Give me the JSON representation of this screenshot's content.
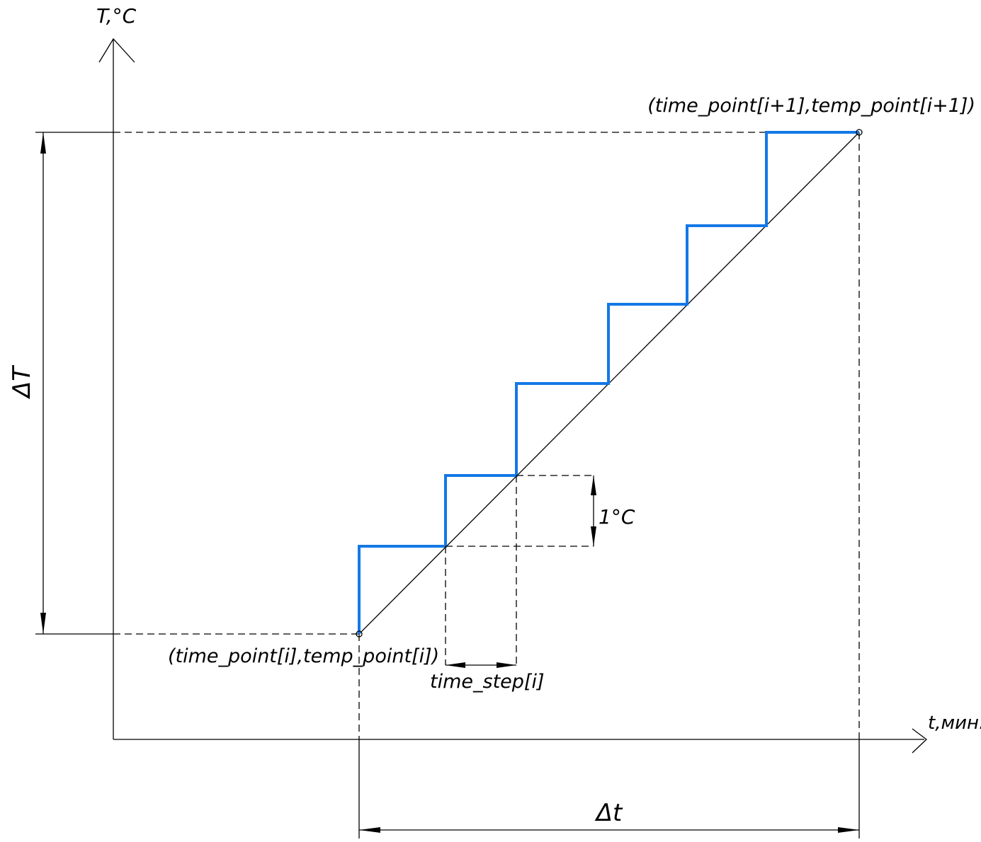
{
  "diagram": {
    "y_axis_label": "T,°C",
    "x_axis_label": "t,мин.",
    "delta_T_label": "ΔT",
    "delta_t_label": "Δt",
    "start_point_label": "(time_point[i],temp_point[i])",
    "end_point_label": "(time_point[i+1],temp_point[i+1])",
    "time_step_label": "time_step[i]",
    "degree_step_label": "1°C",
    "step_color": "#1478e6",
    "line_color": "#000000"
  }
}
